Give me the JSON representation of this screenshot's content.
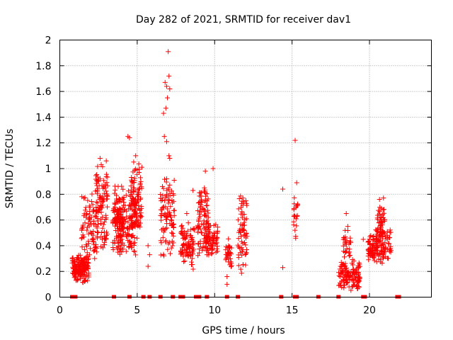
{
  "chart_data": {
    "type": "scatter",
    "title": "Day 282 of 2021, SRMTID for receiver dav1",
    "xlabel": "GPS time / hours",
    "ylabel": "SRMTID / TECUs",
    "xlim": [
      0,
      24
    ],
    "ylim": [
      0,
      2
    ],
    "xticks": [
      0,
      5,
      10,
      15,
      20
    ],
    "yticks": [
      0,
      0.2,
      0.4,
      0.6,
      0.8,
      1,
      1.2,
      1.4,
      1.6,
      1.8,
      2
    ],
    "xtick_labels": [
      "0",
      "5",
      "10",
      "15",
      "20"
    ],
    "ytick_labels": [
      "0",
      "0.2",
      "0.4",
      "0.6",
      "0.8",
      "1",
      "1.2",
      "1.4",
      "1.6",
      "1.8",
      "2"
    ],
    "grid": true,
    "marker": "+",
    "color": "#ff0000",
    "clusters": [
      {
        "x": [
          0.8,
          1.9
        ],
        "y": [
          0.1,
          0.35
        ],
        "n": 170
      },
      {
        "x": [
          1.4,
          2.4
        ],
        "y": [
          0.25,
          0.85
        ],
        "n": 80
      },
      {
        "x": [
          2.3,
          3.1
        ],
        "y": [
          0.3,
          1.08
        ],
        "n": 110
      },
      {
        "x": [
          3.4,
          4.1
        ],
        "y": [
          0.3,
          0.9
        ],
        "n": 100
      },
      {
        "x": [
          3.7,
          4.9
        ],
        "y": [
          0.3,
          0.85
        ],
        "n": 130
      },
      {
        "x": [
          4.6,
          5.3
        ],
        "y": [
          0.4,
          1.1
        ],
        "n": 110
      },
      {
        "x": [
          6.5,
          7.4
        ],
        "y": [
          0.25,
          1.0
        ],
        "n": 100
      },
      {
        "x": [
          7.8,
          8.7
        ],
        "y": [
          0.2,
          0.6
        ],
        "n": 90
      },
      {
        "x": [
          8.9,
          9.6
        ],
        "y": [
          0.25,
          0.95
        ],
        "n": 90
      },
      {
        "x": [
          9.4,
          10.2
        ],
        "y": [
          0.3,
          0.6
        ],
        "n": 80
      },
      {
        "x": [
          10.7,
          11.1
        ],
        "y": [
          0.2,
          0.48
        ],
        "n": 35
      },
      {
        "x": [
          11.5,
          12.1
        ],
        "y": [
          0.15,
          0.8
        ],
        "n": 70
      },
      {
        "x": [
          15.1,
          15.4
        ],
        "y": [
          0.4,
          0.85
        ],
        "n": 20
      },
      {
        "x": [
          18.0,
          19.4
        ],
        "y": [
          0.05,
          0.3
        ],
        "n": 130
      },
      {
        "x": [
          18.3,
          18.8
        ],
        "y": [
          0.2,
          0.55
        ],
        "n": 30
      },
      {
        "x": [
          19.9,
          21.4
        ],
        "y": [
          0.25,
          0.55
        ],
        "n": 150
      },
      {
        "x": [
          20.5,
          21.0
        ],
        "y": [
          0.4,
          0.78
        ],
        "n": 50
      }
    ],
    "isolated_points": [
      {
        "x": 1.8,
        "y": 0.27
      },
      {
        "x": 2.5,
        "y": 0.9
      },
      {
        "x": 2.6,
        "y": 1.08
      },
      {
        "x": 3.0,
        "y": 1.06
      },
      {
        "x": 4.4,
        "y": 1.25
      },
      {
        "x": 4.5,
        "y": 1.24
      },
      {
        "x": 4.9,
        "y": 1.1
      },
      {
        "x": 5.0,
        "y": 0.99
      },
      {
        "x": 5.7,
        "y": 0.4
      },
      {
        "x": 5.8,
        "y": 0.33
      },
      {
        "x": 5.7,
        "y": 0.24
      },
      {
        "x": 6.8,
        "y": 1.67
      },
      {
        "x": 6.9,
        "y": 1.64
      },
      {
        "x": 7.0,
        "y": 1.91
      },
      {
        "x": 7.05,
        "y": 1.72
      },
      {
        "x": 6.95,
        "y": 1.55
      },
      {
        "x": 6.7,
        "y": 1.43
      },
      {
        "x": 6.85,
        "y": 1.47
      },
      {
        "x": 7.1,
        "y": 1.62
      },
      {
        "x": 6.75,
        "y": 1.25
      },
      {
        "x": 6.9,
        "y": 1.21
      },
      {
        "x": 7.05,
        "y": 1.1
      },
      {
        "x": 7.1,
        "y": 1.08
      },
      {
        "x": 8.2,
        "y": 0.65
      },
      {
        "x": 8.6,
        "y": 0.83
      },
      {
        "x": 9.4,
        "y": 0.98
      },
      {
        "x": 9.9,
        "y": 1.0
      },
      {
        "x": 10.8,
        "y": 0.1
      },
      {
        "x": 10.8,
        "y": 0.16
      },
      {
        "x": 14.4,
        "y": 0.84
      },
      {
        "x": 14.4,
        "y": 0.23
      },
      {
        "x": 15.2,
        "y": 1.22
      },
      {
        "x": 15.3,
        "y": 0.89
      },
      {
        "x": 15.3,
        "y": 0.71
      },
      {
        "x": 18.5,
        "y": 0.65
      },
      {
        "x": 18.6,
        "y": 0.55
      },
      {
        "x": 19.6,
        "y": 0.45
      }
    ],
    "zero_points_x": [
      0.8,
      0.9,
      1.0,
      3.5,
      4.5,
      5.4,
      5.8,
      6.5,
      7.3,
      7.8,
      7.95,
      8.8,
      9.0,
      9.5,
      10.8,
      11.5,
      14.3,
      15.2,
      15.3,
      16.7,
      18.0,
      19.6,
      19.7,
      21.8,
      21.9
    ]
  }
}
